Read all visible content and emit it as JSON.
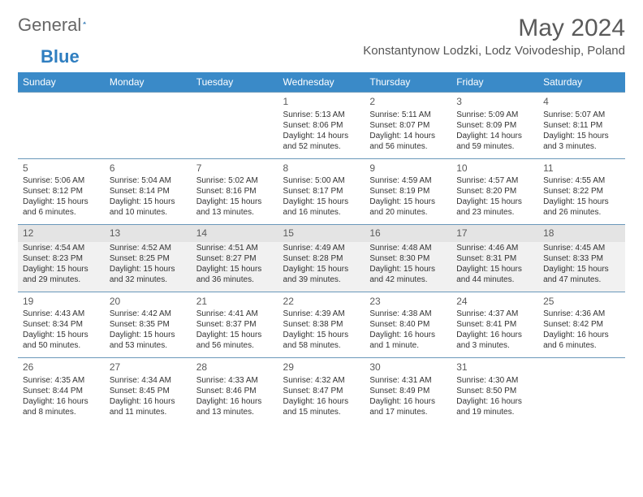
{
  "brand": {
    "part1": "General",
    "part2": "Blue",
    "logo_color": "#2f7ec0"
  },
  "title": "May 2024",
  "location": "Konstantynow Lodzki, Lodz Voivodeship, Poland",
  "colors": {
    "header_bg": "#3a8ac8",
    "header_text": "#ffffff",
    "row_border": "#6a98ba",
    "shade_bg": "#f1f1f1",
    "daynum_shade": "#e4e4e4",
    "text": "#333333"
  },
  "day_headers": [
    "Sunday",
    "Monday",
    "Tuesday",
    "Wednesday",
    "Thursday",
    "Friday",
    "Saturday"
  ],
  "weeks": [
    {
      "shaded": false,
      "days": [
        {
          "empty": true
        },
        {
          "empty": true
        },
        {
          "empty": true
        },
        {
          "num": "1",
          "sunrise": "Sunrise: 5:13 AM",
          "sunset": "Sunset: 8:06 PM",
          "daylight": "Daylight: 14 hours and 52 minutes."
        },
        {
          "num": "2",
          "sunrise": "Sunrise: 5:11 AM",
          "sunset": "Sunset: 8:07 PM",
          "daylight": "Daylight: 14 hours and 56 minutes."
        },
        {
          "num": "3",
          "sunrise": "Sunrise: 5:09 AM",
          "sunset": "Sunset: 8:09 PM",
          "daylight": "Daylight: 14 hours and 59 minutes."
        },
        {
          "num": "4",
          "sunrise": "Sunrise: 5:07 AM",
          "sunset": "Sunset: 8:11 PM",
          "daylight": "Daylight: 15 hours and 3 minutes."
        }
      ]
    },
    {
      "shaded": false,
      "days": [
        {
          "num": "5",
          "sunrise": "Sunrise: 5:06 AM",
          "sunset": "Sunset: 8:12 PM",
          "daylight": "Daylight: 15 hours and 6 minutes."
        },
        {
          "num": "6",
          "sunrise": "Sunrise: 5:04 AM",
          "sunset": "Sunset: 8:14 PM",
          "daylight": "Daylight: 15 hours and 10 minutes."
        },
        {
          "num": "7",
          "sunrise": "Sunrise: 5:02 AM",
          "sunset": "Sunset: 8:16 PM",
          "daylight": "Daylight: 15 hours and 13 minutes."
        },
        {
          "num": "8",
          "sunrise": "Sunrise: 5:00 AM",
          "sunset": "Sunset: 8:17 PM",
          "daylight": "Daylight: 15 hours and 16 minutes."
        },
        {
          "num": "9",
          "sunrise": "Sunrise: 4:59 AM",
          "sunset": "Sunset: 8:19 PM",
          "daylight": "Daylight: 15 hours and 20 minutes."
        },
        {
          "num": "10",
          "sunrise": "Sunrise: 4:57 AM",
          "sunset": "Sunset: 8:20 PM",
          "daylight": "Daylight: 15 hours and 23 minutes."
        },
        {
          "num": "11",
          "sunrise": "Sunrise: 4:55 AM",
          "sunset": "Sunset: 8:22 PM",
          "daylight": "Daylight: 15 hours and 26 minutes."
        }
      ]
    },
    {
      "shaded": true,
      "days": [
        {
          "num": "12",
          "sunrise": "Sunrise: 4:54 AM",
          "sunset": "Sunset: 8:23 PM",
          "daylight": "Daylight: 15 hours and 29 minutes."
        },
        {
          "num": "13",
          "sunrise": "Sunrise: 4:52 AM",
          "sunset": "Sunset: 8:25 PM",
          "daylight": "Daylight: 15 hours and 32 minutes."
        },
        {
          "num": "14",
          "sunrise": "Sunrise: 4:51 AM",
          "sunset": "Sunset: 8:27 PM",
          "daylight": "Daylight: 15 hours and 36 minutes."
        },
        {
          "num": "15",
          "sunrise": "Sunrise: 4:49 AM",
          "sunset": "Sunset: 8:28 PM",
          "daylight": "Daylight: 15 hours and 39 minutes."
        },
        {
          "num": "16",
          "sunrise": "Sunrise: 4:48 AM",
          "sunset": "Sunset: 8:30 PM",
          "daylight": "Daylight: 15 hours and 42 minutes."
        },
        {
          "num": "17",
          "sunrise": "Sunrise: 4:46 AM",
          "sunset": "Sunset: 8:31 PM",
          "daylight": "Daylight: 15 hours and 44 minutes."
        },
        {
          "num": "18",
          "sunrise": "Sunrise: 4:45 AM",
          "sunset": "Sunset: 8:33 PM",
          "daylight": "Daylight: 15 hours and 47 minutes."
        }
      ]
    },
    {
      "shaded": false,
      "days": [
        {
          "num": "19",
          "sunrise": "Sunrise: 4:43 AM",
          "sunset": "Sunset: 8:34 PM",
          "daylight": "Daylight: 15 hours and 50 minutes."
        },
        {
          "num": "20",
          "sunrise": "Sunrise: 4:42 AM",
          "sunset": "Sunset: 8:35 PM",
          "daylight": "Daylight: 15 hours and 53 minutes."
        },
        {
          "num": "21",
          "sunrise": "Sunrise: 4:41 AM",
          "sunset": "Sunset: 8:37 PM",
          "daylight": "Daylight: 15 hours and 56 minutes."
        },
        {
          "num": "22",
          "sunrise": "Sunrise: 4:39 AM",
          "sunset": "Sunset: 8:38 PM",
          "daylight": "Daylight: 15 hours and 58 minutes."
        },
        {
          "num": "23",
          "sunrise": "Sunrise: 4:38 AM",
          "sunset": "Sunset: 8:40 PM",
          "daylight": "Daylight: 16 hours and 1 minute."
        },
        {
          "num": "24",
          "sunrise": "Sunrise: 4:37 AM",
          "sunset": "Sunset: 8:41 PM",
          "daylight": "Daylight: 16 hours and 3 minutes."
        },
        {
          "num": "25",
          "sunrise": "Sunrise: 4:36 AM",
          "sunset": "Sunset: 8:42 PM",
          "daylight": "Daylight: 16 hours and 6 minutes."
        }
      ]
    },
    {
      "shaded": false,
      "days": [
        {
          "num": "26",
          "sunrise": "Sunrise: 4:35 AM",
          "sunset": "Sunset: 8:44 PM",
          "daylight": "Daylight: 16 hours and 8 minutes."
        },
        {
          "num": "27",
          "sunrise": "Sunrise: 4:34 AM",
          "sunset": "Sunset: 8:45 PM",
          "daylight": "Daylight: 16 hours and 11 minutes."
        },
        {
          "num": "28",
          "sunrise": "Sunrise: 4:33 AM",
          "sunset": "Sunset: 8:46 PM",
          "daylight": "Daylight: 16 hours and 13 minutes."
        },
        {
          "num": "29",
          "sunrise": "Sunrise: 4:32 AM",
          "sunset": "Sunset: 8:47 PM",
          "daylight": "Daylight: 16 hours and 15 minutes."
        },
        {
          "num": "30",
          "sunrise": "Sunrise: 4:31 AM",
          "sunset": "Sunset: 8:49 PM",
          "daylight": "Daylight: 16 hours and 17 minutes."
        },
        {
          "num": "31",
          "sunrise": "Sunrise: 4:30 AM",
          "sunset": "Sunset: 8:50 PM",
          "daylight": "Daylight: 16 hours and 19 minutes."
        },
        {
          "empty": true
        }
      ]
    }
  ]
}
